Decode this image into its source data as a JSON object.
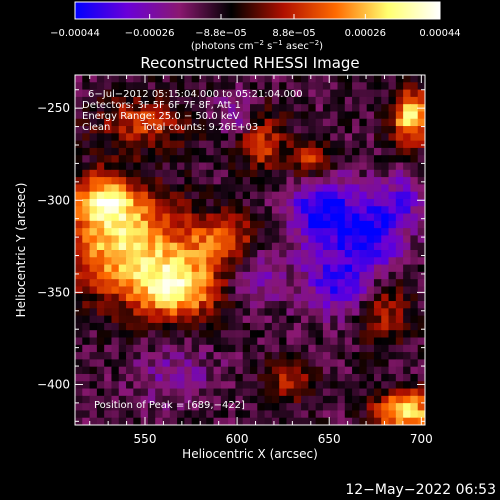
{
  "chart_data": {
    "type": "heatmap",
    "title": "Reconstructed RHESSI Image",
    "xlabel": "Heliocentric X (arcsec)",
    "ylabel": "Heliocentric Y (arcsec)",
    "xlim": [
      512,
      702
    ],
    "ylim": [
      -422,
      -232
    ],
    "x_ticks": [
      550,
      600,
      650,
      700
    ],
    "y_ticks": [
      -250,
      -300,
      -350,
      -400
    ],
    "x_tick_labels": [
      "550",
      "600",
      "650",
      "700"
    ],
    "y_tick_labels": [
      "−250",
      "−300",
      "−350",
      "−400"
    ],
    "colorbar": {
      "range": [
        -0.00044,
        0.00044
      ],
      "tick_values": [
        -0.00044,
        -0.00026,
        -8.8e-05,
        8.8e-05,
        0.00026,
        0.00044
      ],
      "tick_labels": [
        "−0.00044",
        "−0.00026",
        "−8.8e−05",
        "8.8e−05",
        "0.00026",
        "0.00044"
      ],
      "colormap": [
        "#0000ff",
        "#6a00d8",
        "#8a1870",
        "#000000",
        "#b01000",
        "#ff6a00",
        "#ffff70",
        "#ffffff"
      ]
    },
    "units_label": {
      "prefix": "(photons cm",
      "sup1": "−2",
      "mid1": " s",
      "sup2": "−1",
      "mid2": " asec",
      "sup3": "−2",
      "suffix": ")"
    },
    "annotations": {
      "time_range": "6−Jul−2012 05:15:04.000 to 05:21:04.000",
      "detectors": "Detectors: 3F 5F 6F 7F 8F, Att 1",
      "energy_range": "Energy Range: 25.0 − 50.0 keV",
      "algorithm": "Clean",
      "total_counts": "Total counts: 9.26E+03",
      "peak_position": "Position of Peak = [689,−422]"
    },
    "grid_size": [
      48,
      48
    ],
    "sources": [
      {
        "x": 540,
        "y": -325,
        "amp": 0.00042,
        "sx": 22,
        "sy": 20
      },
      {
        "x": 568,
        "y": -348,
        "amp": 0.0004,
        "sx": 16,
        "sy": 12
      },
      {
        "x": 592,
        "y": -322,
        "amp": 0.00028,
        "sx": 14,
        "sy": 10
      },
      {
        "x": 528,
        "y": -300,
        "amp": 0.00034,
        "sx": 12,
        "sy": 10
      },
      {
        "x": 548,
        "y": -258,
        "amp": 0.00022,
        "sx": 18,
        "sy": 10
      },
      {
        "x": 612,
        "y": -268,
        "amp": 0.00024,
        "sx": 10,
        "sy": 12
      },
      {
        "x": 640,
        "y": -280,
        "amp": 0.00026,
        "sx": 8,
        "sy": 8
      },
      {
        "x": 695,
        "y": -255,
        "amp": 0.00044,
        "sx": 8,
        "sy": 10
      },
      {
        "x": 692,
        "y": -415,
        "amp": 0.00044,
        "sx": 12,
        "sy": 8
      },
      {
        "x": 628,
        "y": -398,
        "amp": 0.00018,
        "sx": 10,
        "sy": 8
      },
      {
        "x": 680,
        "y": -360,
        "amp": 0.0002,
        "sx": 10,
        "sy": 12
      },
      {
        "x": 645,
        "y": -305,
        "amp": -0.00032,
        "sx": 12,
        "sy": 14
      },
      {
        "x": 672,
        "y": -318,
        "amp": -0.0003,
        "sx": 12,
        "sy": 14
      },
      {
        "x": 610,
        "y": -340,
        "amp": -0.00016,
        "sx": 10,
        "sy": 12
      },
      {
        "x": 655,
        "y": -345,
        "amp": -0.00024,
        "sx": 14,
        "sy": 12
      },
      {
        "x": 600,
        "y": -255,
        "amp": -0.0002,
        "sx": 8,
        "sy": 8
      },
      {
        "x": 565,
        "y": -395,
        "amp": -0.00012,
        "sx": 16,
        "sy": 12
      },
      {
        "x": 690,
        "y": -300,
        "amp": -0.00018,
        "sx": 8,
        "sy": 10
      }
    ]
  },
  "footer": {
    "timestamp": "12−May−2022 06:53"
  }
}
